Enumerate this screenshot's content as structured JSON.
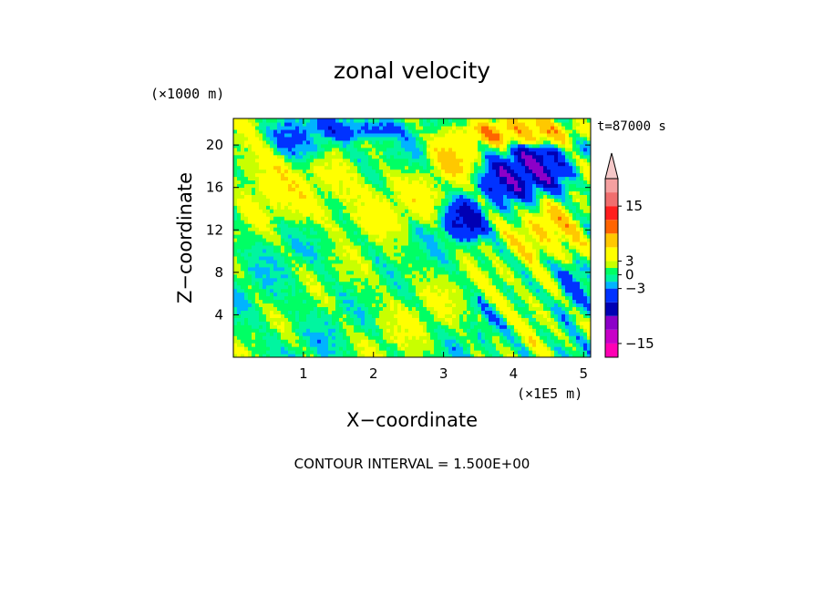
{
  "chart_data": {
    "type": "heatmap",
    "title": "zonal velocity",
    "xlabel": "X−coordinate",
    "ylabel": "Z−coordinate",
    "x_unit_label": "(×1E5 m)",
    "y_unit_label": "(×1000 m)",
    "time_label": "t=87000 s",
    "footer": "CONTOUR INTERVAL = 1.500E+00",
    "xlim": [
      0,
      5.1
    ],
    "ylim": [
      0,
      22.5
    ],
    "x_ticks": [
      1,
      2,
      3,
      4,
      5
    ],
    "y_ticks": [
      4,
      8,
      12,
      16,
      20
    ],
    "x_tick_labels": [
      "1",
      "2",
      "3",
      "4",
      "5"
    ],
    "y_tick_labels": [
      "4",
      "8",
      "12",
      "16",
      "20"
    ],
    "grid": false,
    "colorbar": {
      "placement": "right",
      "levels": [
        -18,
        -15,
        -12,
        -9,
        -6,
        -3,
        -1.5,
        0,
        1.5,
        3,
        6,
        9,
        12,
        15,
        18,
        21
      ],
      "colors": [
        "#ff00b4",
        "#c800c8",
        "#8c00c8",
        "#0000b4",
        "#0032ff",
        "#00b4ff",
        "#00f5a0",
        "#00ff64",
        "#c8ff00",
        "#ffff00",
        "#ffc800",
        "#ff6400",
        "#ff1e1e",
        "#f06e6e",
        "#f5a0a0",
        "#f5c8c8"
      ],
      "tick_labels": [
        {
          "value": 15,
          "label": "15"
        },
        {
          "value": 3,
          "label": "3"
        },
        {
          "value": 0,
          "label": "0"
        },
        {
          "value": -3,
          "label": "−3"
        },
        {
          "value": -15,
          "label": "−15"
        }
      ],
      "extend_top_arrow": true
    },
    "field_description_regions": [
      {
        "x": [
          0.0,
          5.1
        ],
        "z": [
          0,
          22.5
        ],
        "value": 0.5
      },
      {
        "x": [
          0.0,
          1.8
        ],
        "z": [
          0,
          8
        ],
        "value": 0
      },
      {
        "x": [
          1.5,
          3.3
        ],
        "z": [
          0,
          9
        ],
        "value": 2
      },
      {
        "x": [
          0.5,
          2.8
        ],
        "z": [
          12,
          18
        ],
        "value": 4
      },
      {
        "x": [
          0.0,
          0.9
        ],
        "z": [
          15,
          22.5
        ],
        "value": 5
      },
      {
        "x": [
          0.3,
          1.4
        ],
        "z": [
          18.5,
          22.5
        ],
        "value": -4
      },
      {
        "x": [
          1.2,
          2.3
        ],
        "z": [
          20.5,
          22.5
        ],
        "value": -6
      },
      {
        "x": [
          2.8,
          3.5
        ],
        "z": [
          17,
          22
        ],
        "value": 6
      },
      {
        "x": [
          3.0,
          3.6
        ],
        "z": [
          11,
          15
        ],
        "value": -6
      },
      {
        "x": [
          3.6,
          4.8
        ],
        "z": [
          15,
          20
        ],
        "value": -8
      },
      {
        "x": [
          3.4,
          5.1
        ],
        "z": [
          20,
          22.5
        ],
        "value": 8
      },
      {
        "x": [
          4.1,
          5.1
        ],
        "z": [
          9,
          14
        ],
        "value": 6
      },
      {
        "x": [
          3.7,
          4.6
        ],
        "z": [
          3,
          9
        ],
        "value": 3
      },
      {
        "x": [
          4.6,
          5.1
        ],
        "z": [
          3,
          8
        ],
        "value": -4
      }
    ]
  }
}
